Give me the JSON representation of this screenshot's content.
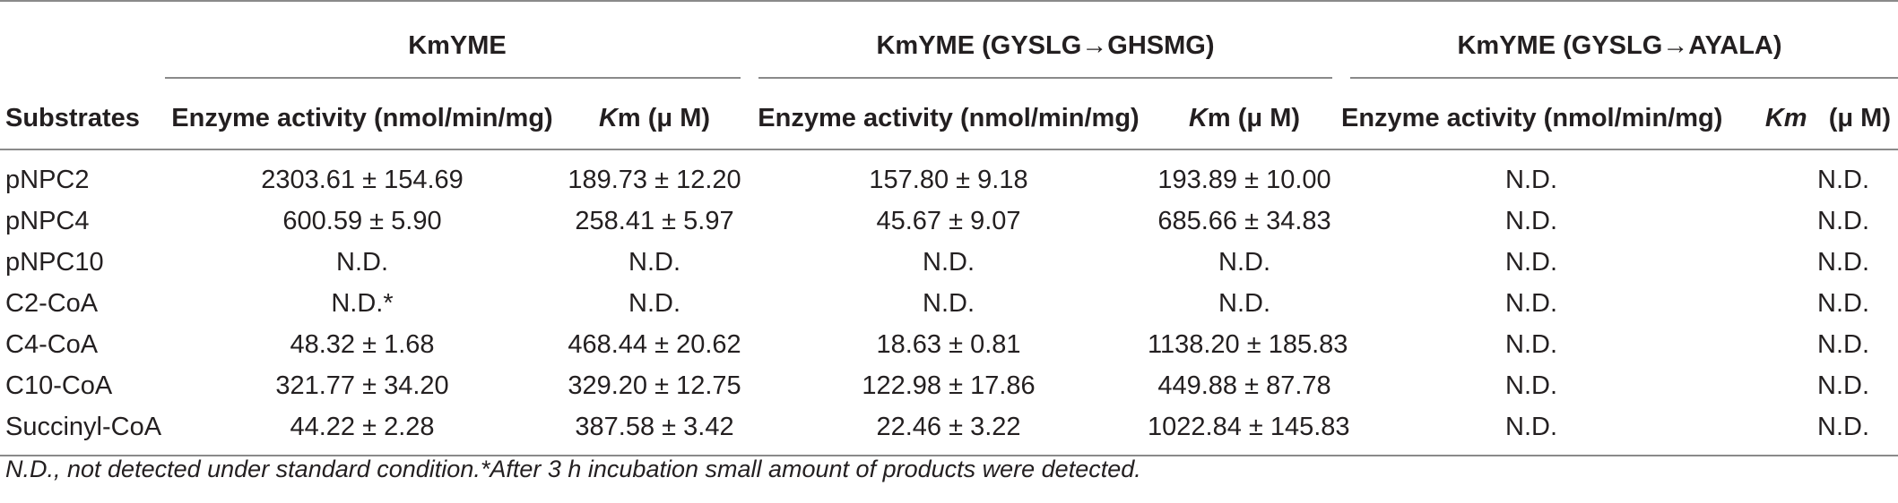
{
  "groups": {
    "g1": "KmYME",
    "g2": "KmYME (GYSLG→GHSMG)",
    "g3": "KmYME (GYSLG→AYALA)"
  },
  "subheaders": {
    "substrates": "Substrates",
    "enzyme_activity": "Enzyme activity (nmol/min/mg)",
    "km_italic": "K",
    "km_rest": "m (μ M)",
    "km3_italic": "Km",
    "km3_rest": "(μ M)"
  },
  "rows": [
    {
      "substrate": "pNPC2",
      "c1": "2303.61 ± 154.69",
      "c2": "189.73 ± 12.20",
      "c3": "157.80 ± 9.18",
      "c4": "193.89 ± 10.00",
      "c5": "N.D.",
      "c6": "N.D."
    },
    {
      "substrate": "pNPC4",
      "c1": "600.59 ± 5.90",
      "c2": "258.41 ± 5.97",
      "c3": "45.67 ± 9.07",
      "c4": "685.66 ± 34.83",
      "c5": "N.D.",
      "c6": "N.D."
    },
    {
      "substrate": "pNPC10",
      "c1": "N.D.",
      "c2": "N.D.",
      "c3": "N.D.",
      "c4": "N.D.",
      "c5": "N.D.",
      "c6": "N.D."
    },
    {
      "substrate": "C2-CoA",
      "c1": "N.D.*",
      "c2": "N.D.",
      "c3": "N.D.",
      "c4": "N.D.",
      "c5": "N.D.",
      "c6": "N.D."
    },
    {
      "substrate": "C4-CoA",
      "c1": "48.32 ± 1.68",
      "c2": "468.44 ± 20.62",
      "c3": "18.63 ± 0.81",
      "c4": "1138.20 ± 185.83",
      "c5": "N.D.",
      "c6": "N.D."
    },
    {
      "substrate": "C10-CoA",
      "c1": "321.77 ± 34.20",
      "c2": "329.20 ± 12.75",
      "c3": "122.98 ± 17.86",
      "c4": "449.88 ± 87.78",
      "c5": "N.D.",
      "c6": "N.D."
    },
    {
      "substrate": "Succinyl-CoA",
      "c1": "44.22 ± 2.28",
      "c2": "387.58 ± 3.42",
      "c3": "22.46 ± 3.22",
      "c4": "1022.84 ± 145.83",
      "c5": "N.D.",
      "c6": "N.D."
    }
  ],
  "footnote": "N.D., not detected under standard condition.*After 3 h incubation small amount of products were detected."
}
